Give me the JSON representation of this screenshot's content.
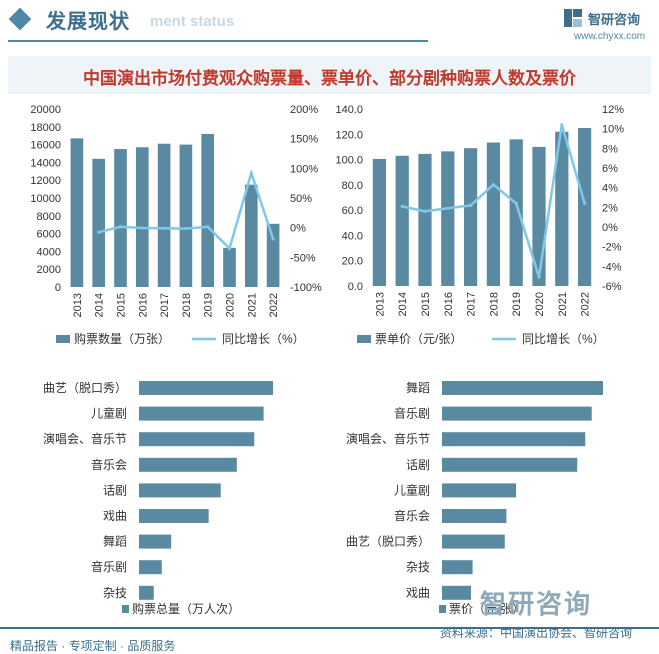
{
  "header": {
    "title": "发展现状",
    "ghost_text": "ment status"
  },
  "brand": {
    "name": "智研咨询",
    "url": "www.chyxx.com"
  },
  "main_title": "中国演出市场付费观众购票量、票单价、部分剧种购票人数及票价",
  "footer": {
    "left": "精品报告 · 专项定制 · 品质服务",
    "right": "资料来源：中国演出协会、智研咨询"
  },
  "watermark": {
    "bottom": "智研咨询"
  },
  "colors": {
    "bar": "#5a8aa2",
    "line": "#7fc8ea",
    "title": "#c0392b",
    "brand": "#3d6f8c"
  },
  "chart_data": [
    {
      "type": "bar",
      "categories": [
        "2013",
        "2014",
        "2015",
        "2016",
        "2017",
        "2018",
        "2019",
        "2020",
        "2021",
        "2022"
      ],
      "series": [
        {
          "name": "购票数量（万张）",
          "type": "bar",
          "axis": "left",
          "values": [
            16700,
            14400,
            15500,
            15700,
            16100,
            16000,
            17200,
            4400,
            11500,
            7100
          ]
        },
        {
          "name": "同比增长（%）",
          "type": "line",
          "axis": "right",
          "values": [
            null,
            -7.8,
            1.5,
            -0.5,
            -1,
            -1.5,
            1.5,
            -35,
            92,
            -19
          ]
        }
      ],
      "left_ticks": [
        "0",
        "2000",
        "4000",
        "6000",
        "8000",
        "10000",
        "12000",
        "14000",
        "16000",
        "18000",
        "20000"
      ],
      "right_ticks": [
        "-100%",
        "-50%",
        "0%",
        "50%",
        "100%",
        "150%",
        "200%"
      ],
      "ylim_left": [
        0,
        20000
      ],
      "ylim_right": [
        -100,
        200
      ],
      "legend_position": "bottom"
    },
    {
      "type": "bar",
      "categories": [
        "2013",
        "2014",
        "2015",
        "2016",
        "2017",
        "2018",
        "2019",
        "2020",
        "2021",
        "2022"
      ],
      "series": [
        {
          "name": "票单价（元/张）",
          "type": "bar",
          "axis": "left",
          "values": [
            100.5,
            103,
            104.5,
            106.5,
            109,
            113.5,
            116,
            110,
            122,
            125
          ]
        },
        {
          "name": "同比增长（%）",
          "type": "line",
          "axis": "right",
          "values": [
            null,
            2.1,
            1.6,
            1.9,
            2.2,
            4.3,
            2.4,
            -5.1,
            10.4,
            2.4
          ]
        }
      ],
      "left_ticks": [
        "0.0",
        "20.0",
        "40.0",
        "60.0",
        "80.0",
        "100.0",
        "120.0",
        "140.0"
      ],
      "right_ticks": [
        "-6%",
        "-4%",
        "-2%",
        "0%",
        "2%",
        "4%",
        "6%",
        "8%",
        "10%",
        "12%"
      ],
      "ylim_left": [
        0,
        140
      ],
      "ylim_right": [
        -6,
        12
      ],
      "legend_position": "bottom"
    },
    {
      "type": "bar",
      "orientation": "horizontal",
      "categories": [
        "曲艺（脱口秀）",
        "儿童剧",
        "演唱会、音乐节",
        "音乐会",
        "话剧",
        "戏曲",
        "舞蹈",
        "音乐剧",
        "杂技"
      ],
      "series": [
        {
          "name": "购票总量（万人次）",
          "values": [
            100,
            93,
            86,
            73,
            61,
            52,
            24,
            17,
            11
          ]
        }
      ],
      "legend_position": "bottom"
    },
    {
      "type": "bar",
      "orientation": "horizontal",
      "categories": [
        "舞蹈",
        "音乐剧",
        "演唱会、音乐节",
        "话剧",
        "儿童剧",
        "音乐会",
        "曲艺（脱口秀）",
        "杂技",
        "戏曲"
      ],
      "series": [
        {
          "name": "票价（元/张）",
          "values": [
            100,
            93,
            89,
            84,
            46,
            40,
            39,
            19,
            18
          ]
        }
      ],
      "legend_position": "bottom"
    }
  ]
}
